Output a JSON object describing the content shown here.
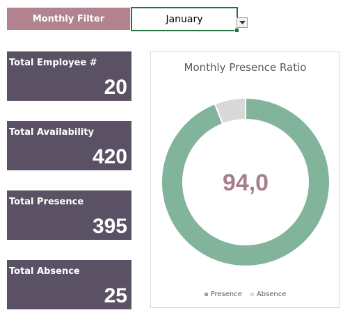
{
  "filter": {
    "label": "Monthly Filter",
    "value": "January"
  },
  "cards": [
    {
      "title": "Total Employee #",
      "value": "20"
    },
    {
      "title": "Total Availability",
      "value": "420"
    },
    {
      "title": "Total Presence",
      "value": "395"
    },
    {
      "title": "Total Absence",
      "value": "25"
    }
  ],
  "chart_data": {
    "type": "pie",
    "title": "Monthly Presence Ratio",
    "center_label": "94,0",
    "series": [
      {
        "name": "Presence",
        "value": 395,
        "color": "#82b49b"
      },
      {
        "name": "Absence",
        "value": 25,
        "color": "#d9d9d9"
      }
    ],
    "legend": "bottom"
  },
  "colors": {
    "card_bg": "#5a5264",
    "filter_label_bg": "#b0838e",
    "center_label": "#a67f8e"
  }
}
